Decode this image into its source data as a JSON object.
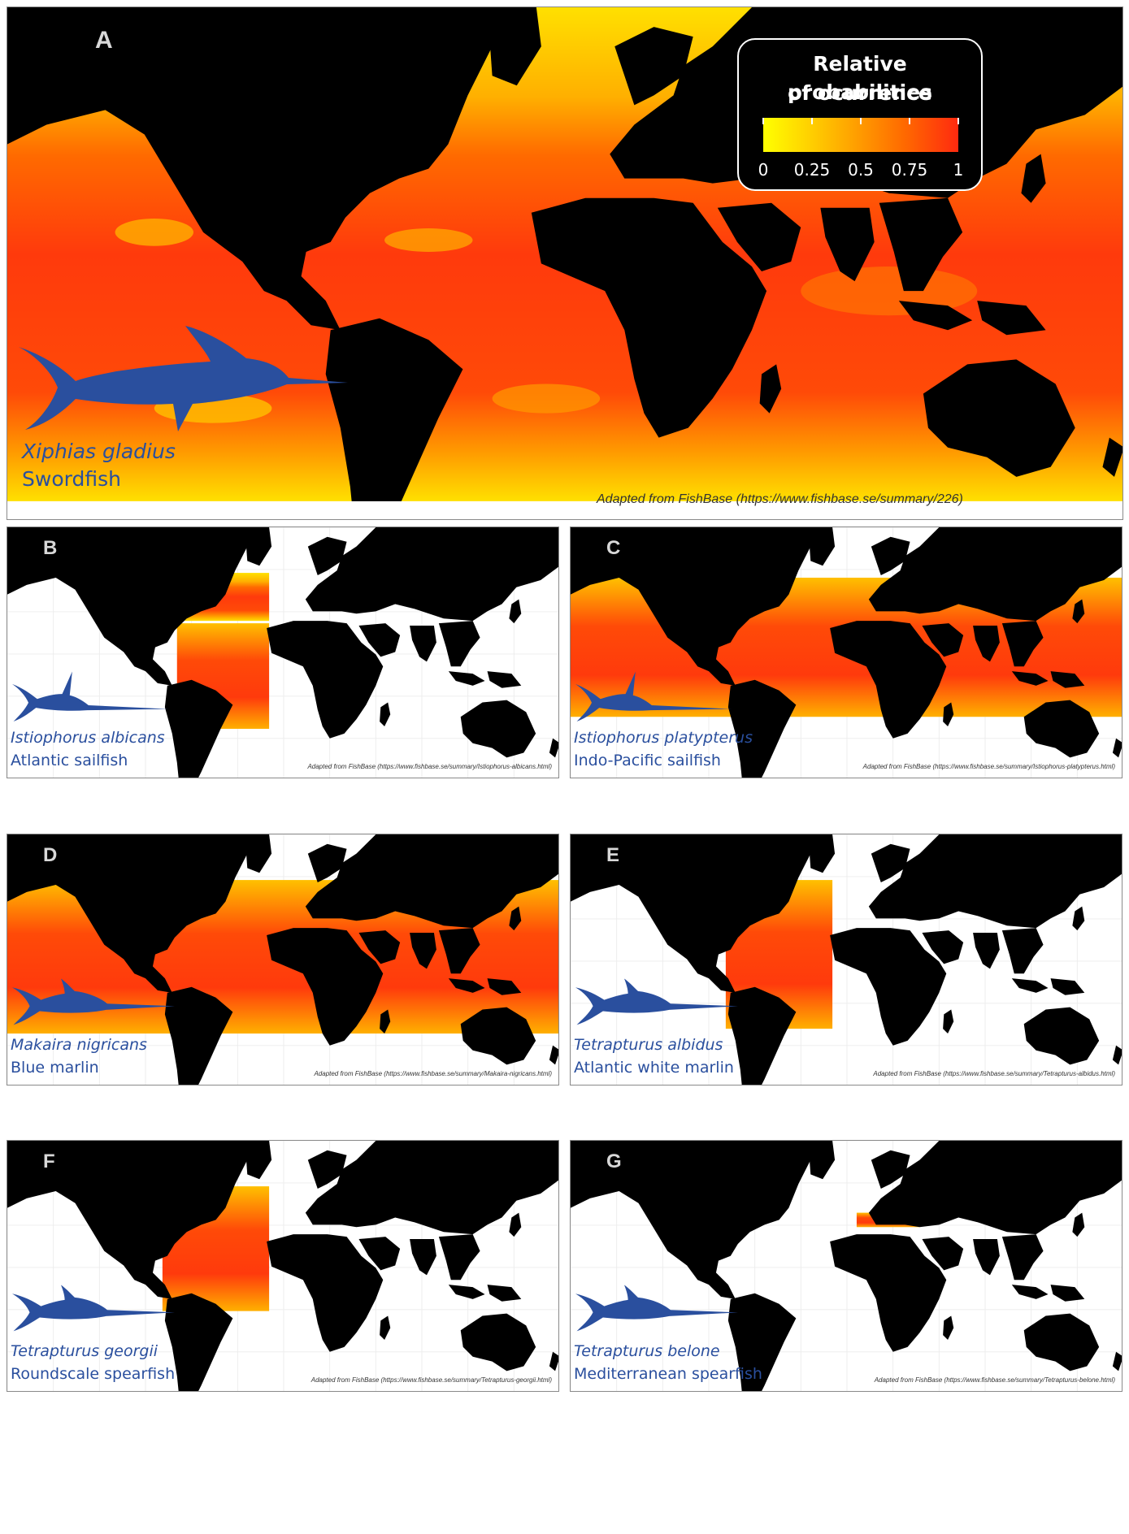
{
  "colors": {
    "land": "#000000",
    "fish": "#2a4f9e",
    "ocean_high": "#ff3a0c",
    "ocean_mid": "#ff8a00",
    "ocean_low": "#ffe000"
  },
  "panels": [
    {
      "id": "A",
      "letter": "A",
      "scientific": "Xiphias gladius",
      "common": "Swordfish",
      "credit": "Adapted from FishBase (https://www.fishbase.se/summary/226)"
    },
    {
      "id": "B",
      "letter": "B",
      "scientific": "Istiophorus albicans",
      "common": "Atlantic sailfish",
      "credit": "Adapted from FishBase (https://www.fishbase.se/summary/Istiophorus-albicans.html)"
    },
    {
      "id": "C",
      "letter": "C",
      "scientific": "Istiophorus platypterus",
      "common": "Indo-Pacific sailfish",
      "credit": "Adapted from FishBase (https://www.fishbase.se/summary/Istiophorus-platypterus.html)"
    },
    {
      "id": "D",
      "letter": "D",
      "scientific": "Makaira nigricans",
      "common": "Blue marlin",
      "credit": "Adapted from FishBase (https://www.fishbase.se/summary/Makaira-nigricans.html)"
    },
    {
      "id": "E",
      "letter": "E",
      "scientific": "Tetrapturus albidus",
      "common": "Atlantic white marlin",
      "credit": "Adapted from FishBase (https://www.fishbase.se/summary/Tetrapturus-albidus.html)"
    },
    {
      "id": "F",
      "letter": "F",
      "scientific": "Tetrapturus georgii",
      "common": "Roundscale spearfish",
      "credit": "Adapted from FishBase (https://www.fishbase.se/summary/Tetrapturus-georgii.html)"
    },
    {
      "id": "G",
      "letter": "G",
      "scientific": "Tetrapturus belone",
      "common": "Mediterranean spearfish",
      "credit": "Adapted from FishBase (https://www.fishbase.se/summary/Tetrapturus-belone.html)"
    }
  ],
  "legend": {
    "title_line1": "Relative probabilities",
    "title_line2": "of ocurrence",
    "ticks": [
      "0",
      "0.25",
      "0.5",
      "0.75",
      "1"
    ],
    "tick_values": [
      0,
      0.25,
      0.5,
      0.75,
      1
    ]
  }
}
